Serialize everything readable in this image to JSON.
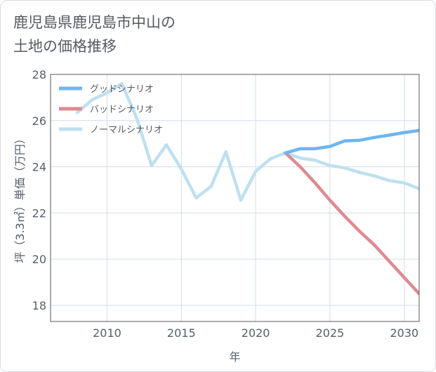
{
  "header": {
    "title_line1": "鹿児島県鹿児島市中山の",
    "title_line2": "土地の価格推移"
  },
  "chart_data": {
    "type": "line",
    "xlabel": "年",
    "ylabel": "坪（3.3㎡）単価（万円）",
    "xlim": [
      2006.2,
      2031
    ],
    "ylim": [
      17.3,
      28
    ],
    "x_ticks": [
      2010,
      2015,
      2020,
      2025,
      2030
    ],
    "y_ticks": [
      18,
      20,
      22,
      24,
      26,
      28
    ],
    "grid": true,
    "legend_position": "top-left",
    "series": [
      {
        "name": "グッドシナリオ",
        "color": "#6cb6f0",
        "x": [
          2022,
          2023,
          2024,
          2025,
          2026,
          2027,
          2028,
          2029,
          2030,
          2031
        ],
        "y": [
          24.6,
          24.78,
          24.78,
          24.88,
          25.12,
          25.15,
          25.27,
          25.37,
          25.48,
          25.57
        ]
      },
      {
        "name": "バッドシナリオ",
        "color": "#de8a92",
        "x": [
          2022,
          2023,
          2024,
          2025,
          2026,
          2027,
          2028,
          2029,
          2030,
          2031
        ],
        "y": [
          24.6,
          24.0,
          23.3,
          22.55,
          21.85,
          21.2,
          20.6,
          19.9,
          19.2,
          18.5
        ]
      },
      {
        "name": "ノーマルシナリオ",
        "color": "#bfe0ee",
        "x": [
          2008,
          2009,
          2010,
          2011,
          2012,
          2013,
          2014,
          2015,
          2016,
          2017,
          2018,
          2019,
          2020,
          2021,
          2022,
          2023,
          2024,
          2025,
          2026,
          2027,
          2028,
          2029,
          2030,
          2031
        ],
        "y": [
          26.35,
          26.9,
          27.2,
          27.6,
          26.1,
          24.05,
          24.95,
          23.9,
          22.65,
          23.15,
          24.65,
          22.55,
          23.8,
          24.35,
          24.6,
          24.38,
          24.28,
          24.05,
          23.95,
          23.75,
          23.6,
          23.4,
          23.3,
          23.05
        ]
      }
    ]
  }
}
